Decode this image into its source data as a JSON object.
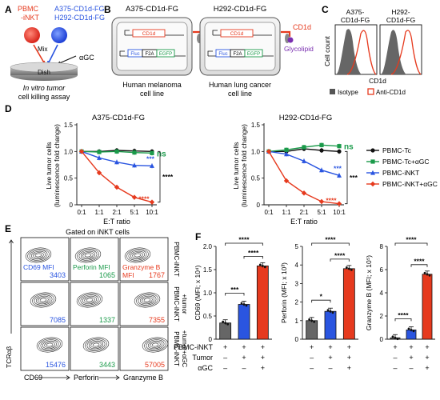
{
  "colors": {
    "black": "#111111",
    "green": "#1a9a4a",
    "blue": "#2a55e0",
    "red": "#e63a1e",
    "grey": "#555555",
    "isotype": "#666666"
  },
  "panel_a": {
    "letter": "A",
    "label_pbmc": "PBMC",
    "label_inkt": "-iNKT",
    "label_a375": "A375-CD1d-FG,",
    "label_h292": "H292-CD1d-FG",
    "mix": "Mix",
    "agc": "αGC",
    "dish": "Dish",
    "caption1": "In vitro tumor",
    "caption2": "cell killing assay"
  },
  "panel_b": {
    "letter": "B",
    "cell1_title": "A375-CD1d-FG",
    "cell2_title": "H292-CD1d-FG",
    "gene_cd1d": "CD1d",
    "gene_fluc": "Fluc",
    "gene_f2a": "F2A",
    "gene_egfp": "EGFP",
    "cd1d_label": "CD1d",
    "glycolipid_label": "Glycolipid",
    "cell1_caption1": "Human melanoma",
    "cell1_caption2": "cell line",
    "cell2_caption1": "Human lung cancer",
    "cell2_caption2": "cell line"
  },
  "panel_c": {
    "letter": "C",
    "title1a": "A375-",
    "title1b": "CD1d-FG",
    "title2a": "H292-",
    "title2b": "CD1d-FG",
    "ylabel": "Cell count",
    "xlabel": "CD1d",
    "legend_isotype": "Isotype",
    "legend_anti": "Anti-CD1d"
  },
  "panel_d": {
    "letter": "D",
    "legend": [
      "PBMC-Tc",
      "PBMC-Tc+αGC",
      "PBMC-iNKT",
      "PBMC-iNKT+αGC"
    ]
  },
  "chart_data": [
    {
      "type": "line",
      "title": "A375-CD1d-FG",
      "xlabel": "E:T ratio",
      "ylabel": "Live tumor cells (luminescence fold change)",
      "categories": [
        "0:1",
        "1:1",
        "2:1",
        "5:1",
        "10:1"
      ],
      "ylim": [
        0,
        1.5
      ],
      "yticks": [
        "0",
        "0.5",
        "1.0",
        "1.5"
      ],
      "series": [
        {
          "name": "PBMC-Tc",
          "values": [
            1.0,
            1.0,
            1.02,
            1.01,
            1.0
          ]
        },
        {
          "name": "PBMC-Tc+αGC",
          "values": [
            1.0,
            0.99,
            1.0,
            0.98,
            0.97
          ]
        },
        {
          "name": "PBMC-iNKT",
          "values": [
            1.0,
            0.88,
            0.8,
            0.74,
            0.73
          ]
        },
        {
          "name": "PBMC-iNKT+αGC",
          "values": [
            1.0,
            0.6,
            0.33,
            0.14,
            0.05
          ]
        }
      ],
      "annotations": {
        "ns": "ns",
        "blue_stars": "***",
        "red_stars": "****",
        "bracket_stars": "****"
      }
    },
    {
      "type": "line",
      "title": "H292-CD1d-FG",
      "xlabel": "E:T ratio",
      "ylabel": "Live tumor cells (luminescence fold change)",
      "categories": [
        "0:1",
        "1:1",
        "2:1",
        "5:1",
        "10:1"
      ],
      "ylim": [
        0,
        1.5
      ],
      "yticks": [
        "0",
        "0.5",
        "1.0",
        "1.5"
      ],
      "series": [
        {
          "name": "PBMC-Tc",
          "values": [
            1.0,
            1.0,
            1.05,
            1.02,
            1.0
          ]
        },
        {
          "name": "PBMC-Tc+αGC",
          "values": [
            1.0,
            1.03,
            1.08,
            1.12,
            1.1
          ]
        },
        {
          "name": "PBMC-iNKT",
          "values": [
            1.0,
            0.95,
            0.82,
            0.65,
            0.55
          ]
        },
        {
          "name": "PBMC-iNKT+αGC",
          "values": [
            1.0,
            0.45,
            0.22,
            0.06,
            0.02
          ]
        }
      ],
      "annotations": {
        "ns": "ns",
        "blue_stars": "***",
        "red_stars": "****",
        "bracket_stars": "***"
      }
    },
    {
      "type": "bar",
      "ylabel": "CD69 (MFI; x 10⁴)",
      "categories": [
        "PBMC-iNKT",
        "PBMC-iNKT+Tumor",
        "PBMC-iNKT+Tumor+αGC"
      ],
      "values": [
        0.35,
        0.75,
        1.58
      ],
      "ylim": [
        0,
        2.0
      ],
      "yticks": [
        "0",
        "0.5",
        "1.0",
        "1.5",
        "2.0"
      ],
      "significance": [
        "***",
        "****",
        "****"
      ]
    },
    {
      "type": "bar",
      "ylabel": "Perforin (MFI; x 10³)",
      "categories": [
        "PBMC-iNKT",
        "PBMC-iNKT+Tumor",
        "PBMC-iNKT+Tumor+αGC"
      ],
      "values": [
        1.0,
        1.5,
        3.8
      ],
      "ylim": [
        0,
        5
      ],
      "yticks": [
        "0",
        "1",
        "2",
        "3",
        "4",
        "5"
      ],
      "significance": [
        "*",
        "****",
        "****"
      ]
    },
    {
      "type": "bar",
      "ylabel": "Granzyme B (MFI; x 10⁵)",
      "categories": [
        "PBMC-iNKT",
        "PBMC-iNKT+Tumor",
        "PBMC-iNKT+Tumor+αGC"
      ],
      "values": [
        0.12,
        0.8,
        5.6
      ],
      "ylim": [
        0,
        8
      ],
      "yticks": [
        "0",
        "2",
        "4",
        "6",
        "8"
      ],
      "significance": [
        "****",
        "****",
        "****"
      ]
    }
  ],
  "panel_e": {
    "letter": "E",
    "header": "Gated on iNKT cells",
    "ylabel": "TCRαβ",
    "xlabels": [
      "CD69",
      "Perforin",
      "Granzyme B"
    ],
    "col_titles": [
      "CD69 MFI",
      "Perforin MFI",
      "Granzyme B"
    ],
    "col_title3b": "MFI",
    "row_labels": [
      [
        "PBMC-iNKT"
      ],
      [
        "PBMC-iNKT",
        "+tumor"
      ],
      [
        "PBMC-iNKT",
        "+tumor+αGC"
      ]
    ],
    "values": [
      [
        "3403",
        "1065",
        "1767"
      ],
      [
        "7085",
        "1337",
        "7355"
      ],
      [
        "15476",
        "3443",
        "57005"
      ]
    ]
  },
  "panel_f": {
    "letter": "F",
    "row_labels": [
      "PBMC-iNKT",
      "Tumor",
      "αGC"
    ],
    "matrix": [
      [
        "+",
        "+",
        "+"
      ],
      [
        "–",
        "+",
        "+"
      ],
      [
        "–",
        "–",
        "+"
      ]
    ]
  }
}
